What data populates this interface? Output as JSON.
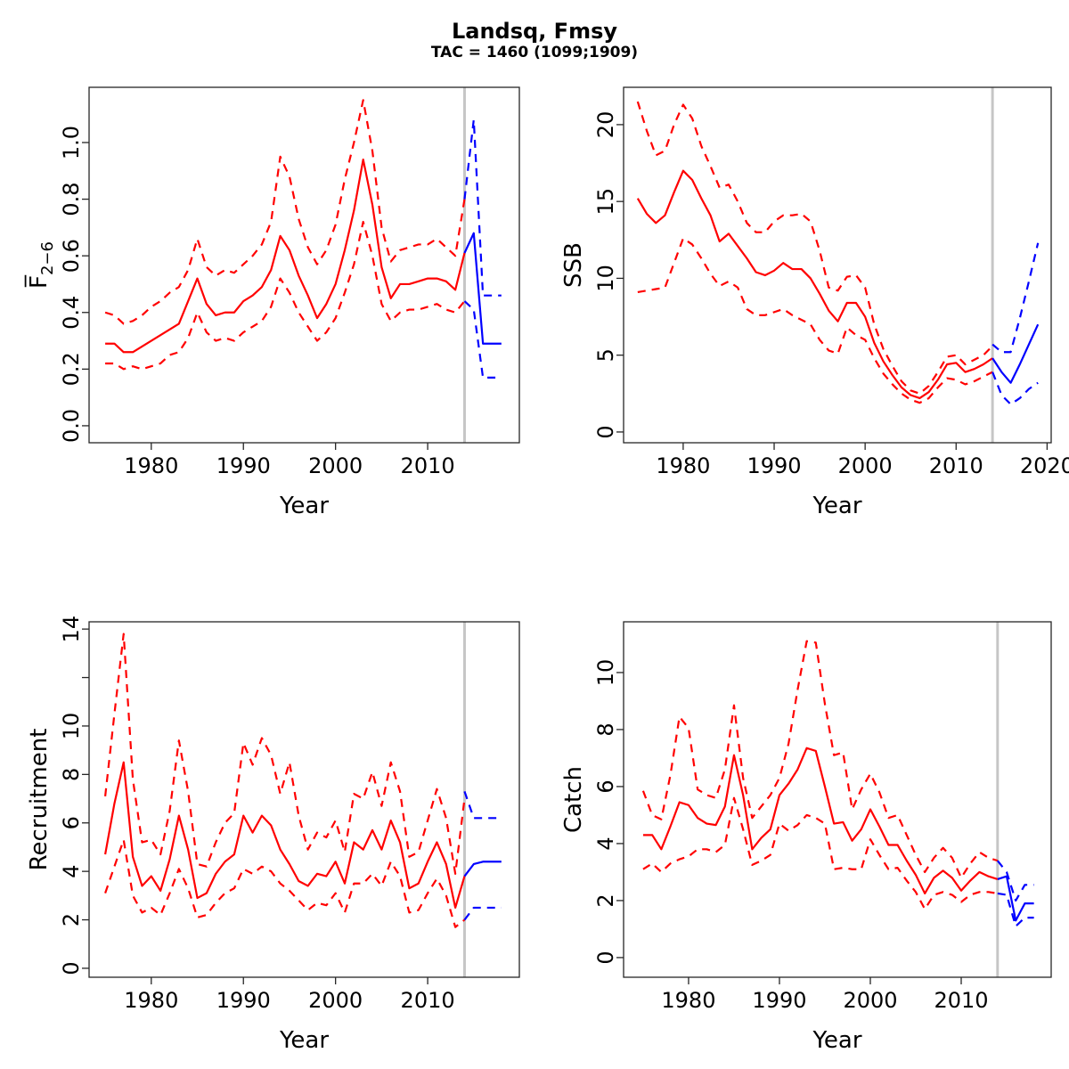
{
  "page": {
    "title": "Landsq, Fmsy",
    "subtitle": "TAC = 1460 (1099;1909)"
  },
  "colors": {
    "assessment": "#ff0000",
    "forecast": "#0000ff",
    "divider": "#c6c6c6",
    "axis": "#262626",
    "text": "#000000",
    "background": "#ffffff"
  },
  "chart_data": [
    {
      "type": "line",
      "id": "fbar",
      "ylabel": {
        "main": "F̅",
        "sub": "2−6"
      },
      "xlabel": "Year",
      "x_ticks": [
        1980,
        1990,
        2000,
        2010
      ],
      "y_ticks": [
        0.0,
        0.2,
        0.4,
        0.6,
        0.8,
        1.0
      ],
      "y_tick_labels": [
        "0.0",
        "0.2",
        "0.4",
        "0.6",
        "0.8",
        "1.0"
      ],
      "xlim": [
        1973.25,
        2019.95
      ],
      "ylim": [
        -0.06,
        1.195
      ],
      "divider_x": 2014,
      "legend": {
        "solid": "median",
        "dashed": "confidence interval"
      },
      "assessment": {
        "years": [
          1975,
          1976,
          1977,
          1978,
          1979,
          1980,
          1981,
          1982,
          1983,
          1984,
          1985,
          1986,
          1987,
          1988,
          1989,
          1990,
          1991,
          1992,
          1993,
          1994,
          1995,
          1996,
          1997,
          1998,
          1999,
          2000,
          2001,
          2002,
          2003,
          2004,
          2005,
          2006,
          2007,
          2008,
          2009,
          2010,
          2011,
          2012,
          2013,
          2014
        ],
        "median": [
          0.29,
          0.29,
          0.26,
          0.26,
          0.28,
          0.3,
          0.32,
          0.34,
          0.36,
          0.44,
          0.52,
          0.43,
          0.39,
          0.4,
          0.4,
          0.44,
          0.46,
          0.49,
          0.55,
          0.67,
          0.62,
          0.53,
          0.46,
          0.38,
          0.43,
          0.5,
          0.62,
          0.76,
          0.94,
          0.78,
          0.56,
          0.45,
          0.5,
          0.5,
          0.51,
          0.52,
          0.52,
          0.51,
          0.48,
          0.61
        ],
        "hi": [
          0.4,
          0.39,
          0.36,
          0.37,
          0.39,
          0.42,
          0.44,
          0.47,
          0.49,
          0.55,
          0.66,
          0.56,
          0.53,
          0.55,
          0.54,
          0.57,
          0.6,
          0.64,
          0.72,
          0.95,
          0.88,
          0.73,
          0.63,
          0.57,
          0.62,
          0.71,
          0.87,
          1.0,
          1.15,
          0.97,
          0.7,
          0.58,
          0.62,
          0.63,
          0.64,
          0.64,
          0.66,
          0.63,
          0.6,
          0.8
        ],
        "lo": [
          0.22,
          0.22,
          0.2,
          0.21,
          0.2,
          0.21,
          0.22,
          0.25,
          0.26,
          0.31,
          0.4,
          0.33,
          0.3,
          0.31,
          0.3,
          0.33,
          0.35,
          0.37,
          0.42,
          0.52,
          0.47,
          0.4,
          0.35,
          0.3,
          0.33,
          0.38,
          0.47,
          0.57,
          0.72,
          0.6,
          0.43,
          0.37,
          0.4,
          0.41,
          0.41,
          0.42,
          0.43,
          0.41,
          0.4,
          0.44
        ]
      },
      "forecast": {
        "years": [
          2014,
          2015,
          2016,
          2017,
          2018
        ],
        "median": [
          0.61,
          0.68,
          0.29,
          0.29,
          0.29
        ],
        "hi": [
          0.8,
          1.08,
          0.46,
          0.46,
          0.46
        ],
        "lo": [
          0.44,
          0.41,
          0.17,
          0.17,
          0.17
        ]
      }
    },
    {
      "type": "line",
      "id": "ssb",
      "ylabel": {
        "main": "SSB",
        "sub": ""
      },
      "xlabel": "Year",
      "x_ticks": [
        1980,
        1990,
        2000,
        2010,
        2020
      ],
      "y_ticks": [
        0,
        5,
        10,
        15,
        20
      ],
      "y_tick_labels": [
        "0",
        "5",
        "10",
        "15",
        "20"
      ],
      "xlim": [
        1973.45,
        2020.45
      ],
      "ylim": [
        -0.7,
        22.43
      ],
      "divider_x": 2014,
      "legend": {
        "solid": "median",
        "dashed": "confidence interval"
      },
      "assessment": {
        "years": [
          1975,
          1976,
          1977,
          1978,
          1979,
          1980,
          1981,
          1982,
          1983,
          1984,
          1985,
          1986,
          1987,
          1988,
          1989,
          1990,
          1991,
          1992,
          1993,
          1994,
          1995,
          1996,
          1997,
          1998,
          1999,
          2000,
          2001,
          2002,
          2003,
          2004,
          2005,
          2006,
          2007,
          2008,
          2009,
          2010,
          2011,
          2012,
          2013,
          2014
        ],
        "median": [
          15.2,
          14.2,
          13.6,
          14.1,
          15.6,
          17.0,
          16.4,
          15.2,
          14.1,
          12.4,
          12.9,
          12.1,
          11.3,
          10.4,
          10.2,
          10.5,
          11.0,
          10.6,
          10.6,
          10.0,
          9.0,
          7.9,
          7.2,
          8.4,
          8.4,
          7.5,
          5.8,
          4.6,
          3.7,
          2.9,
          2.4,
          2.2,
          2.6,
          3.4,
          4.4,
          4.5,
          3.9,
          4.1,
          4.4,
          4.8
        ],
        "hi": [
          21.5,
          19.6,
          18.0,
          18.3,
          20.0,
          21.3,
          20.4,
          18.6,
          17.3,
          15.9,
          16.1,
          15.0,
          13.6,
          13.0,
          13.0,
          13.7,
          14.1,
          14.1,
          14.2,
          13.7,
          11.8,
          9.4,
          9.2,
          10.1,
          10.2,
          9.4,
          7.0,
          5.4,
          4.3,
          3.3,
          2.7,
          2.5,
          3.0,
          3.9,
          4.9,
          5.0,
          4.4,
          4.7,
          5.0,
          5.6
        ],
        "lo": [
          9.1,
          9.2,
          9.3,
          9.4,
          11.0,
          12.6,
          12.2,
          11.3,
          10.3,
          9.5,
          9.8,
          9.4,
          8.0,
          7.6,
          7.6,
          7.8,
          8.0,
          7.6,
          7.3,
          7.0,
          6.0,
          5.3,
          5.1,
          6.8,
          6.3,
          6.0,
          4.8,
          3.8,
          3.1,
          2.5,
          2.1,
          1.9,
          2.2,
          2.9,
          3.5,
          3.4,
          3.1,
          3.3,
          3.6,
          3.9
        ]
      },
      "forecast": {
        "years": [
          2014,
          2015,
          2016,
          2017,
          2018,
          2019
        ],
        "median": [
          4.8,
          3.9,
          3.2,
          4.4,
          5.7,
          7.0
        ],
        "hi": [
          5.7,
          5.2,
          5.2,
          7.4,
          9.8,
          12.3
        ],
        "lo": [
          3.9,
          2.4,
          1.8,
          2.2,
          2.8,
          3.2
        ]
      }
    },
    {
      "type": "line",
      "id": "recruitment",
      "ylabel": {
        "main": "Recruitment",
        "sub": ""
      },
      "xlabel": "Year",
      "x_ticks": [
        1980,
        1990,
        2000,
        2010
      ],
      "y_ticks": [
        0,
        2,
        4,
        6,
        8,
        10,
        12,
        14
      ],
      "y_tick_labels": [
        "0",
        "2",
        "4",
        "6",
        "8",
        "10",
        "",
        "14"
      ],
      "xlim": [
        1973.25,
        2019.95
      ],
      "ylim": [
        -0.37,
        14.3
      ],
      "divider_x": 2014,
      "legend": {
        "solid": "median",
        "dashed": "confidence interval"
      },
      "assessment": {
        "years": [
          1975,
          1976,
          1977,
          1978,
          1979,
          1980,
          1981,
          1982,
          1983,
          1984,
          1985,
          1986,
          1987,
          1988,
          1989,
          1990,
          1991,
          1992,
          1993,
          1994,
          1995,
          1996,
          1997,
          1998,
          1999,
          2000,
          2001,
          2002,
          2003,
          2004,
          2005,
          2006,
          2007,
          2008,
          2009,
          2010,
          2011,
          2012,
          2013,
          2014
        ],
        "median": [
          4.7,
          6.8,
          8.5,
          4.6,
          3.4,
          3.8,
          3.2,
          4.5,
          6.3,
          4.9,
          2.9,
          3.1,
          3.9,
          4.4,
          4.7,
          6.3,
          5.6,
          6.3,
          5.9,
          4.9,
          4.3,
          3.6,
          3.4,
          3.9,
          3.8,
          4.4,
          3.5,
          5.2,
          4.9,
          5.7,
          4.9,
          6.1,
          5.2,
          3.3,
          3.5,
          4.4,
          5.2,
          4.3,
          2.5,
          3.8
        ],
        "hi": [
          7.1,
          10.5,
          13.8,
          7.8,
          5.2,
          5.3,
          4.7,
          6.5,
          9.4,
          7.3,
          4.3,
          4.2,
          5.2,
          6.0,
          6.4,
          9.3,
          8.4,
          9.5,
          8.8,
          7.2,
          8.5,
          6.3,
          4.9,
          5.6,
          5.4,
          6.1,
          4.8,
          7.2,
          7.0,
          8.1,
          6.7,
          8.5,
          7.3,
          4.6,
          4.8,
          6.1,
          7.4,
          6.2,
          3.9,
          7.0
        ],
        "lo": [
          3.1,
          4.2,
          5.3,
          3.0,
          2.3,
          2.5,
          2.2,
          3.1,
          4.1,
          3.3,
          2.1,
          2.2,
          2.7,
          3.1,
          3.3,
          4.1,
          3.9,
          4.2,
          4.0,
          3.5,
          3.2,
          2.8,
          2.4,
          2.7,
          2.6,
          3.1,
          2.3,
          3.5,
          3.5,
          3.9,
          3.4,
          4.4,
          3.8,
          2.3,
          2.4,
          3.1,
          3.7,
          3.0,
          1.7,
          2.0
        ]
      },
      "forecast": {
        "years": [
          2014,
          2015,
          2016,
          2017,
          2018
        ],
        "median": [
          3.8,
          4.3,
          4.4,
          4.4,
          4.4
        ],
        "hi": [
          7.3,
          6.2,
          6.2,
          6.2,
          6.2
        ],
        "lo": [
          2.0,
          2.5,
          2.5,
          2.5,
          2.5
        ]
      }
    },
    {
      "type": "line",
      "id": "catch",
      "ylabel": {
        "main": "Catch",
        "sub": ""
      },
      "xlabel": "Year",
      "x_ticks": [
        1980,
        1990,
        2000,
        2010
      ],
      "y_ticks": [
        0,
        2,
        4,
        6,
        8,
        10
      ],
      "y_tick_labels": [
        "0",
        "2",
        "4",
        "6",
        "8",
        "10"
      ],
      "xlim": [
        1972.85,
        2019.9
      ],
      "ylim": [
        -0.69,
        11.78
      ],
      "divider_x": 2014,
      "legend": {
        "solid": "median",
        "dashed": "confidence interval"
      },
      "assessment": {
        "years": [
          1975,
          1976,
          1977,
          1978,
          1979,
          1980,
          1981,
          1982,
          1983,
          1984,
          1985,
          1986,
          1987,
          1988,
          1989,
          1990,
          1991,
          1992,
          1993,
          1994,
          1995,
          1996,
          1997,
          1998,
          1999,
          2000,
          2001,
          2002,
          2003,
          2004,
          2005,
          2006,
          2007,
          2008,
          2009,
          2010,
          2011,
          2012,
          2013,
          2014
        ],
        "median": [
          4.3,
          4.3,
          3.8,
          4.6,
          5.45,
          5.35,
          4.9,
          4.7,
          4.65,
          5.3,
          7.1,
          5.7,
          3.8,
          4.2,
          4.5,
          5.7,
          6.1,
          6.6,
          7.35,
          7.25,
          6.0,
          4.7,
          4.75,
          4.1,
          4.5,
          5.2,
          4.6,
          3.95,
          3.95,
          3.4,
          2.9,
          2.25,
          2.8,
          3.05,
          2.8,
          2.35,
          2.7,
          3.0,
          2.85,
          2.75
        ],
        "hi": [
          5.85,
          5.0,
          4.85,
          6.4,
          8.45,
          8.05,
          5.9,
          5.7,
          5.6,
          6.6,
          8.85,
          6.3,
          4.9,
          5.3,
          5.7,
          6.3,
          7.5,
          9.4,
          11.1,
          11.05,
          8.9,
          7.1,
          7.2,
          5.2,
          5.9,
          6.45,
          5.8,
          4.9,
          5.0,
          4.3,
          3.6,
          3.0,
          3.5,
          3.85,
          3.5,
          2.8,
          3.3,
          3.7,
          3.5,
          3.4
        ],
        "lo": [
          3.1,
          3.3,
          3.0,
          3.3,
          3.45,
          3.55,
          3.8,
          3.8,
          3.7,
          3.95,
          5.6,
          4.5,
          3.25,
          3.4,
          3.6,
          4.7,
          4.45,
          4.65,
          5.0,
          4.9,
          4.7,
          3.1,
          3.15,
          3.1,
          3.1,
          4.15,
          3.6,
          3.1,
          3.15,
          2.7,
          2.3,
          1.7,
          2.2,
          2.3,
          2.2,
          1.95,
          2.2,
          2.3,
          2.3,
          2.25
        ]
      },
      "forecast": {
        "years": [
          2014,
          2015,
          2016,
          2017,
          2018
        ],
        "median": [
          2.75,
          2.85,
          1.3,
          1.9,
          1.9
        ],
        "hi": [
          3.4,
          3.0,
          2.0,
          2.55,
          2.55
        ],
        "lo": [
          2.25,
          2.2,
          1.1,
          1.4,
          1.4
        ]
      }
    }
  ]
}
